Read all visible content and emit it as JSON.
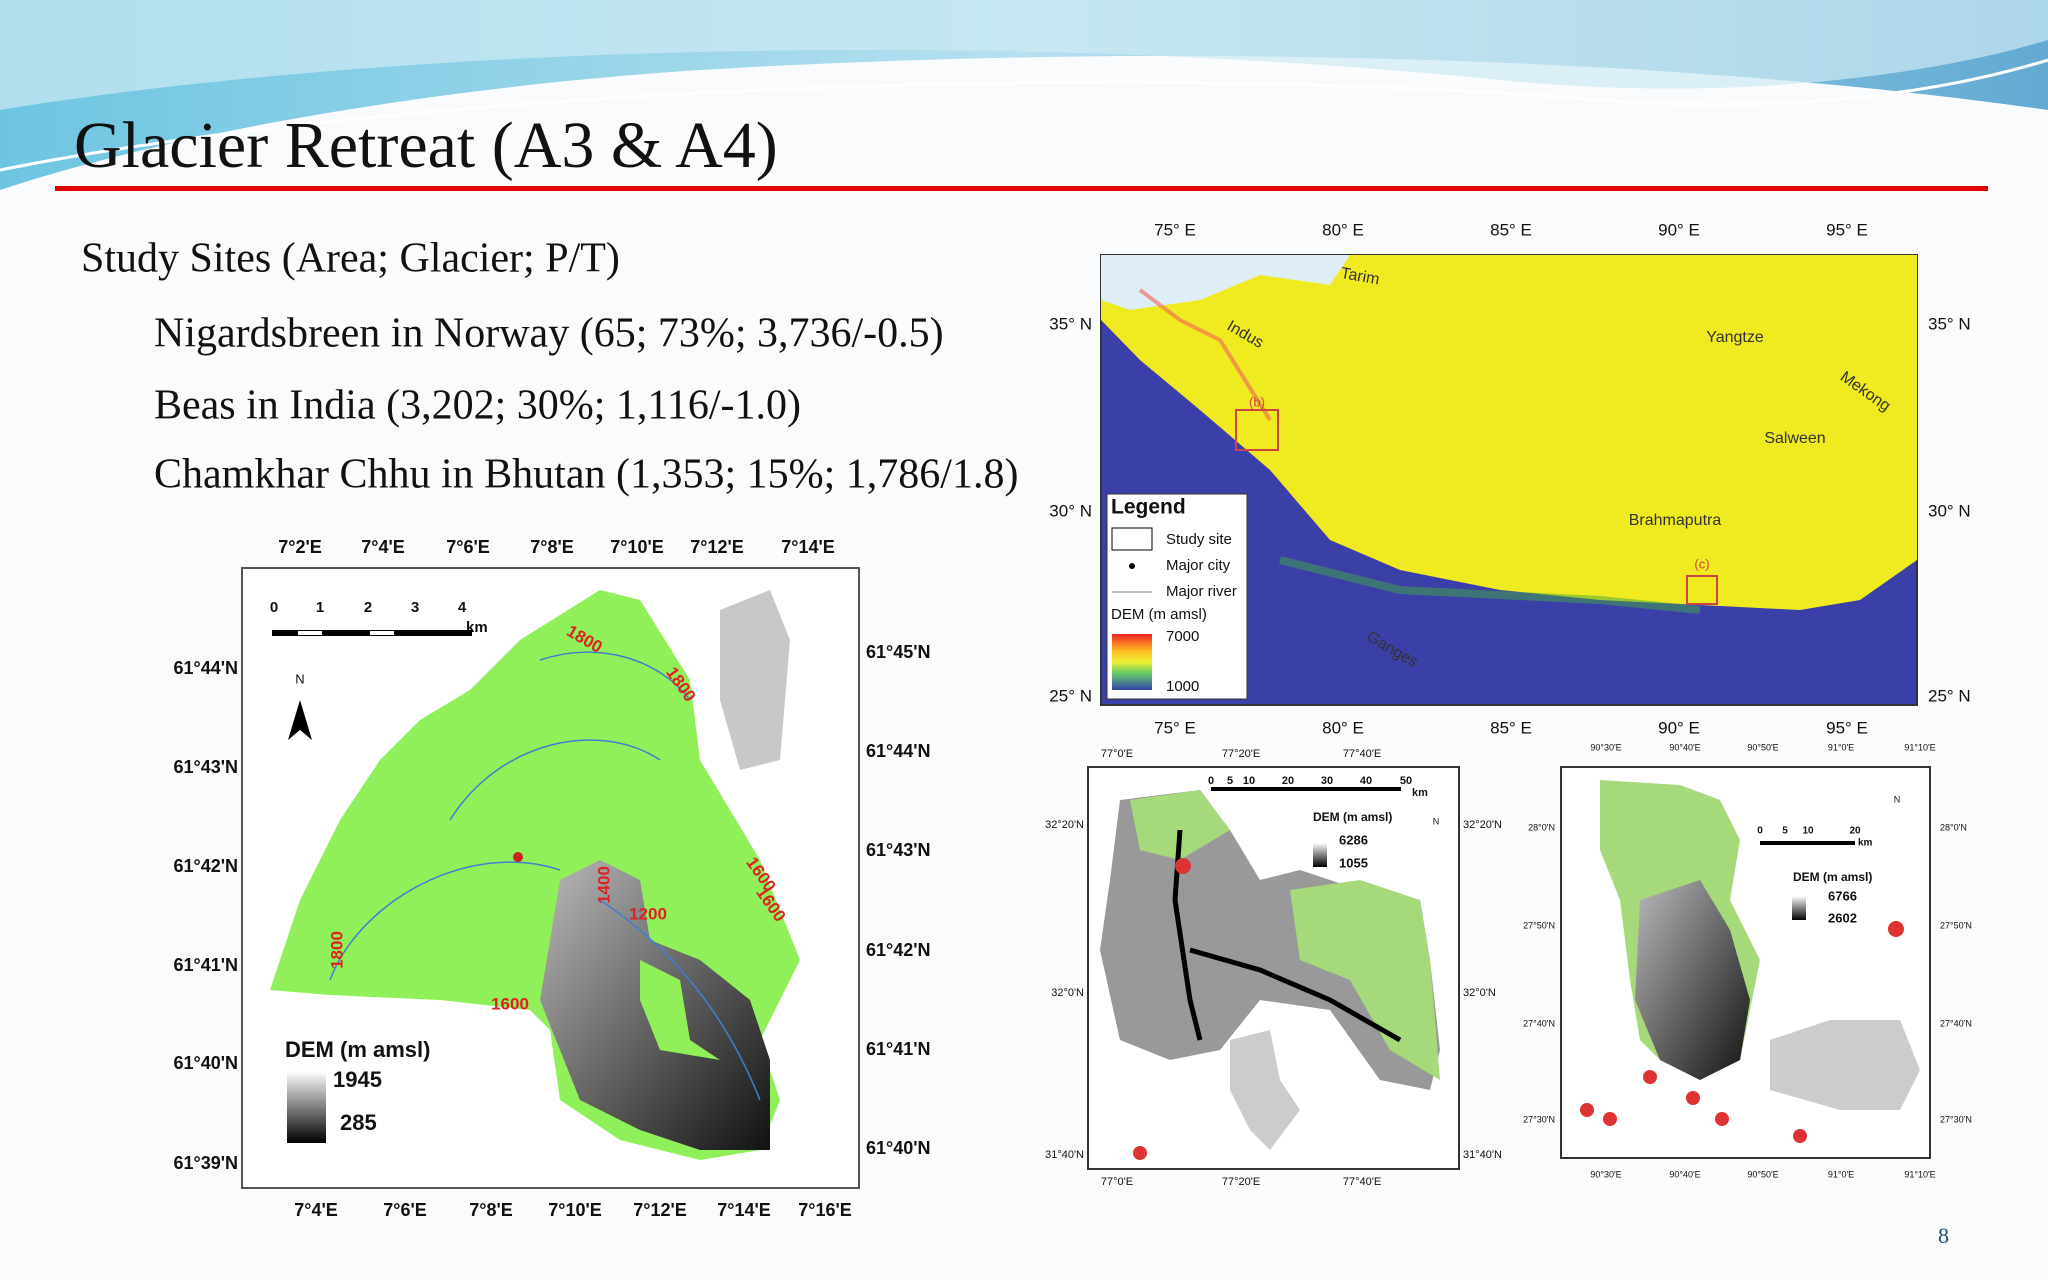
{
  "header": {
    "title": "Glacier Retreat (A3 & A4)"
  },
  "content": {
    "heading": "Study Sites (Area; Glacier; P/T)",
    "items": [
      "Nigardsbreen in Norway (65; 73%; 3,736/-0.5)",
      "Beas in India (3,202; 30%; 1,116/-1.0)",
      "Chamkhar Chhu in Bhutan (1,353; 15%; 1,786/1.8)"
    ]
  },
  "map_norway": {
    "lon_top": [
      "7°2'E",
      "7°4'E",
      "7°6'E",
      "7°8'E",
      "7°10'E",
      "7°12'E",
      "7°14'E"
    ],
    "lon_bottom": [
      "7°4'E",
      "7°6'E",
      "7°8'E",
      "7°10'E",
      "7°12'E",
      "7°14'E",
      "7°16'E"
    ],
    "lat_left": [
      "61°44'N",
      "61°43'N",
      "61°42'N",
      "61°41'N",
      "61°40'N",
      "61°39'N"
    ],
    "lat_right": [
      "61°45'N",
      "61°44'N",
      "61°43'N",
      "61°42'N",
      "61°41'N",
      "61°40'N"
    ],
    "scale": [
      "0",
      "1",
      "2",
      "3",
      "4",
      "km"
    ],
    "north": "N",
    "contours": [
      "1800",
      "1800",
      "1600",
      "1600",
      "1400",
      "1200",
      "1600",
      "1800"
    ],
    "legend_title": "DEM (m amsl)",
    "legend_max": "1945",
    "legend_min": "285"
  },
  "map_asia": {
    "lon_top": [
      "75° E",
      "80° E",
      "85° E",
      "90° E",
      "95° E"
    ],
    "lon_bottom": [
      "75° E",
      "80° E",
      "85° E",
      "90° E",
      "95° E"
    ],
    "lat_left": [
      "35° N",
      "30° N",
      "25° N"
    ],
    "lat_right": [
      "35° N",
      "30° N",
      "25° N"
    ],
    "rivers": [
      "Tarim",
      "Indus",
      "Yangtze",
      "Mekong",
      "Salween",
      "Brahmaputra",
      "Ganges"
    ],
    "sites": [
      "(b)",
      "(c)"
    ],
    "legend": {
      "title": "Legend",
      "study_site": "Study site",
      "major_city": "Major city",
      "major_river": "Major river",
      "dem": "DEM (m amsl)",
      "max": "7000",
      "min": "1000"
    }
  },
  "map_beas": {
    "lon": [
      "77°0'E",
      "77°20'E",
      "77°40'E"
    ],
    "lat": [
      "32°20'N",
      "32°0'N",
      "31°40'N"
    ],
    "scale": [
      "0",
      "5",
      "10",
      "20",
      "30",
      "40",
      "50",
      "km"
    ],
    "legend_title": "DEM (m amsl)",
    "legend_max": "6286",
    "legend_min": "1055",
    "north": "N"
  },
  "map_bhutan": {
    "lon": [
      "90°30'E",
      "90°40'E",
      "90°50'E",
      "91°0'E",
      "91°10'E"
    ],
    "lat": [
      "28°0'N",
      "27°50'N",
      "27°40'N",
      "27°30'N"
    ],
    "scale": [
      "0",
      "5",
      "10",
      "20",
      "km"
    ],
    "legend_title": "DEM (m amsl)",
    "legend_max": "6766",
    "legend_min": "2602",
    "north": "N"
  },
  "page_number": "8"
}
